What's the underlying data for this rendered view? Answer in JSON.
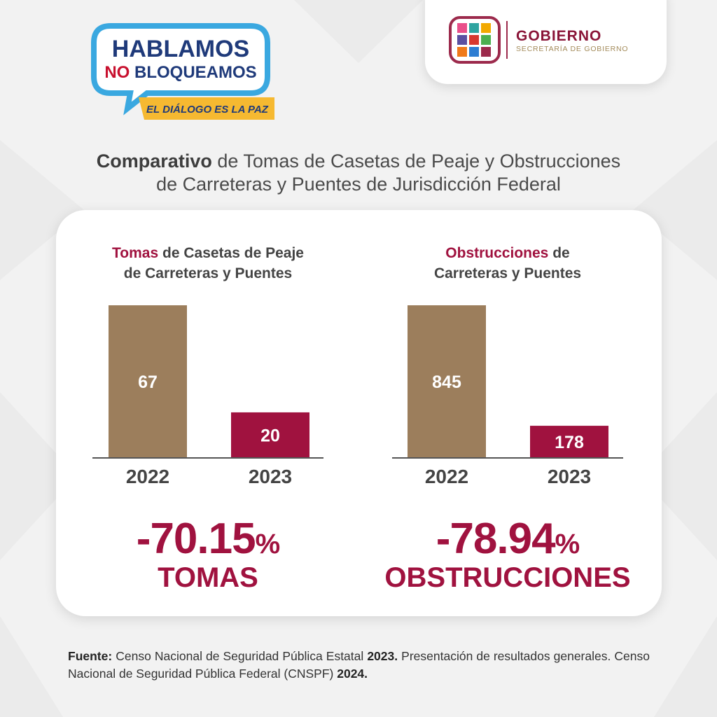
{
  "logo": {
    "line1": "HABLAMOS",
    "line2_a": "NO",
    "line2_b": "BLOQUEAMOS",
    "tagline": "EL DIÁLOGO ES LA PAZ"
  },
  "government": {
    "name": "GOBIERNO",
    "office": "SECRETARÍA DE GOBIERNO"
  },
  "header": {
    "title_bold": "Comparativo",
    "title_rest": "de Tomas de Casetas de Peaje y Obstrucciones",
    "title_line2": "de Carreteras y Puentes de Jurisdicción Federal"
  },
  "chart_data": [
    {
      "type": "bar",
      "title_highlight": "Tomas",
      "title_rest": "de Casetas de Peaje",
      "title_line2": "de Carreteras y Puentes",
      "categories": [
        "2022",
        "2023"
      ],
      "values": [
        67,
        20
      ],
      "colors": [
        "#9c7e5c",
        "#a0123f"
      ],
      "change": "-70.15",
      "change_unit": "%",
      "change_label": "TOMAS"
    },
    {
      "type": "bar",
      "title_highlight": "Obstrucciones",
      "title_rest": "de",
      "title_line2": "Carreteras y Puentes",
      "categories": [
        "2022",
        "2023"
      ],
      "values": [
        845,
        178
      ],
      "colors": [
        "#9c7e5c",
        "#a0123f"
      ],
      "change": "-78.94",
      "change_unit": "%",
      "change_label": "OBSTRUCCIONES"
    }
  ],
  "footer": {
    "label": "Fuente:",
    "text_1": "Censo Nacional de Seguridad Pública Estatal",
    "year_1": "2023.",
    "text_2": "Presentación de resultados generales. Censo Nacional de Seguridad Pública Federal (CNSPF)",
    "year_2": "2024."
  }
}
